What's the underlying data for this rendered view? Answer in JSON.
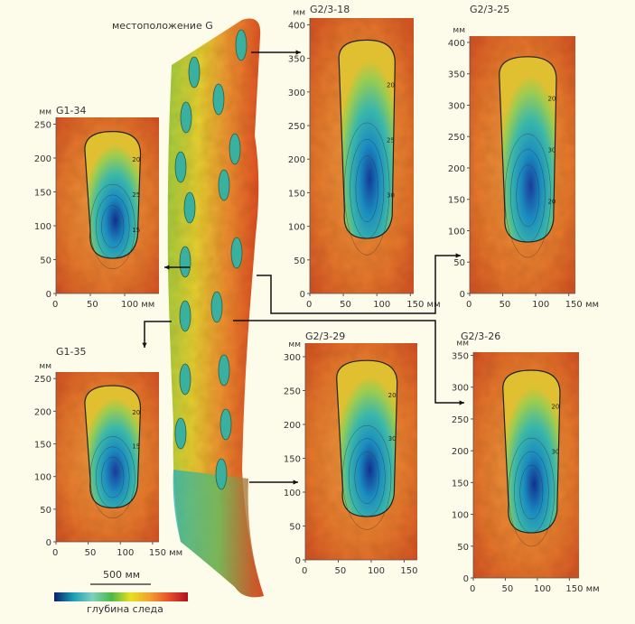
{
  "site_label": "местоположение G",
  "scale_bar_label": "500 мм",
  "colorbar_label": "глубина следа",
  "colorbar_colors": [
    "#0b1f6b",
    "#1a9fb5",
    "#7fcfc0",
    "#4cb848",
    "#e8e020",
    "#f2a030",
    "#e8502a",
    "#b01020"
  ],
  "units": "мм",
  "panels": [
    {
      "id": "G1-34",
      "y_ticks": [
        0,
        50,
        100,
        150,
        200,
        250
      ],
      "x_ticks": [
        "0",
        "50",
        "100 мм"
      ],
      "x_max": 150,
      "y_max": 260,
      "depth_color": "#12308a",
      "contours": [
        "20",
        "25",
        "15"
      ]
    },
    {
      "id": "G2/3-18",
      "y_ticks": [
        0,
        50,
        100,
        150,
        200,
        250,
        300,
        350,
        400
      ],
      "x_ticks": [
        "0",
        "50",
        "100",
        "150 мм"
      ],
      "x_max": 155,
      "y_max": 410,
      "depth_color": "#123a98",
      "contours": [
        "20",
        "25",
        "30"
      ]
    },
    {
      "id": "G2/3-25",
      "y_ticks": [
        0,
        50,
        100,
        150,
        200,
        250,
        300,
        350,
        400
      ],
      "x_ticks": [
        "0",
        "50",
        "100",
        "150 мм"
      ],
      "x_max": 160,
      "y_max": 410,
      "depth_color": "#1a3c9a",
      "contours": [
        "20",
        "30",
        "20"
      ]
    },
    {
      "id": "G1-35",
      "y_ticks": [
        0,
        50,
        100,
        150,
        200,
        250
      ],
      "x_ticks": [
        "0",
        "50",
        "100",
        "150 мм"
      ],
      "x_max": 160,
      "y_max": 260,
      "depth_color": "#1a3a98",
      "contours": [
        "20",
        "15"
      ]
    },
    {
      "id": "G2/3-29",
      "y_ticks": [
        0,
        50,
        100,
        150,
        200,
        250,
        300
      ],
      "x_ticks": [
        "0",
        "50",
        "100",
        "150"
      ],
      "x_max": 170,
      "y_max": 320,
      "depth_color": "#123090",
      "contours": [
        "20",
        "30"
      ]
    },
    {
      "id": "G2/3-26",
      "y_ticks": [
        0,
        50,
        100,
        150,
        200,
        250,
        300,
        350
      ],
      "x_ticks": [
        "0",
        "50",
        "100",
        "150 мм"
      ],
      "x_max": 165,
      "y_max": 355,
      "depth_color": "#12308e",
      "contours": [
        "20",
        "30"
      ]
    }
  ]
}
